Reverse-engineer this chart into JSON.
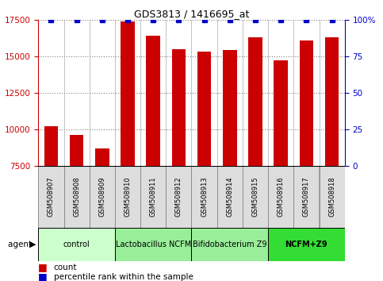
{
  "title": "GDS3813 / 1416695_at",
  "samples": [
    "GSM508907",
    "GSM508908",
    "GSM508909",
    "GSM508910",
    "GSM508911",
    "GSM508912",
    "GSM508913",
    "GSM508914",
    "GSM508915",
    "GSM508916",
    "GSM508917",
    "GSM508918"
  ],
  "counts": [
    10200,
    9600,
    8700,
    17400,
    16400,
    15500,
    15300,
    15400,
    16300,
    14700,
    16100,
    16300
  ],
  "percentiles": [
    100,
    100,
    100,
    100,
    100,
    100,
    100,
    100,
    100,
    100,
    100,
    100
  ],
  "ylim_left": [
    7500,
    17500
  ],
  "ylim_right": [
    0,
    100
  ],
  "yticks_left": [
    7500,
    10000,
    12500,
    15000,
    17500
  ],
  "yticks_right": [
    0,
    25,
    50,
    75,
    100
  ],
  "bar_color": "#cc0000",
  "percentile_color": "#0000cc",
  "agent_groups": [
    {
      "label": "control",
      "start": 0,
      "end": 3,
      "color": "#ccffcc",
      "fontweight": "normal"
    },
    {
      "label": "Lactobacillus NCFM",
      "start": 3,
      "end": 6,
      "color": "#99ee99",
      "fontweight": "normal"
    },
    {
      "label": "Bifidobacterium Z9",
      "start": 6,
      "end": 9,
      "color": "#99ee99",
      "fontweight": "normal"
    },
    {
      "label": "NCFM+Z9",
      "start": 9,
      "end": 12,
      "color": "#33dd33",
      "fontweight": "bold"
    }
  ],
  "legend_count_color": "#cc0000",
  "legend_percentile_color": "#0000cc",
  "agent_label": "agent",
  "bar_width": 0.55,
  "grid_style": "dotted",
  "grid_color": "#000000",
  "grid_alpha": 0.6,
  "tick_color_left": "#cc0000",
  "tick_color_right": "#0000cc",
  "sample_cell_color": "#dddddd",
  "sample_cell_edge": "#888888"
}
